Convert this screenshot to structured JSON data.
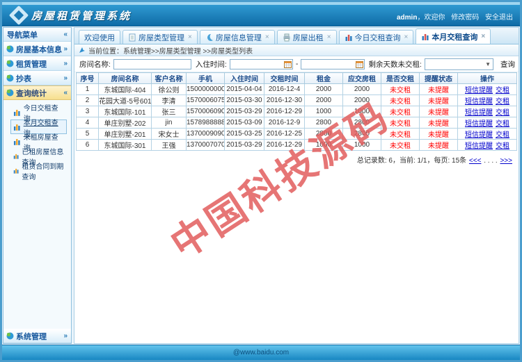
{
  "header": {
    "title": "房屋租赁管理系统",
    "user": "admin",
    "welcome_suffix": "，欢迎你",
    "change_password": "修改密码",
    "logout": "安全退出"
  },
  "sidebar": {
    "title": "导航菜单",
    "collapse": "«",
    "groups": [
      {
        "label": "房屋基本信息",
        "arrow": "»"
      },
      {
        "label": "租赁管理",
        "arrow": "»"
      },
      {
        "label": "抄表",
        "arrow": "»"
      },
      {
        "label": "查询统计",
        "arrow": "«"
      }
    ],
    "query_items": [
      {
        "label": "今日交租查询"
      },
      {
        "label": "本月交租查询"
      },
      {
        "label": "未租房屋查询"
      },
      {
        "label": "已租房屋信息查询"
      },
      {
        "label": "租赁合同到期查询"
      }
    ],
    "bottom_group": {
      "label": "系统管理",
      "arrow": "»"
    }
  },
  "tabs": [
    {
      "label": "欢迎使用",
      "close": ""
    },
    {
      "label": "房屋类型管理",
      "close": "×"
    },
    {
      "label": "房屋信息管理",
      "close": "×"
    },
    {
      "label": "房屋出租",
      "close": "×"
    },
    {
      "label": "今日交租查询",
      "close": "×"
    },
    {
      "label": "本月交租查询",
      "close": "×"
    }
  ],
  "breadcrumb": {
    "text": "当前位置：系统管理>>房屋类型管理 >>房屋类型列表"
  },
  "search": {
    "room_label": "房间名称:",
    "checkin_label": "入住时间:",
    "range_sep": "-",
    "days_label": "剩余天数未交租:",
    "select_arrow": "▼",
    "query": "查询"
  },
  "table": {
    "headers": [
      "序号",
      "房间名称",
      "客户名称",
      "手机",
      "入住时间",
      "交租时间",
      "租金",
      "应交房租",
      "是否交租",
      "提醒状态",
      "操作"
    ],
    "rows": [
      {
        "no": "1",
        "room": "东城国际-404",
        "customer": "徐公则",
        "phone": "15000000000",
        "checkin": "2015-04-04",
        "rent_date": "2016-12-4",
        "rent": "2000",
        "due": "2000",
        "paid": "未交租",
        "remind": "未提醒",
        "op_sms": "短信提醒",
        "op_pay": "交租"
      },
      {
        "no": "2",
        "room": "花园大道-5号601室",
        "customer": "李清",
        "phone": "15700060757",
        "checkin": "2015-03-30",
        "rent_date": "2016-12-30",
        "rent": "2000",
        "due": "2000",
        "paid": "未交租",
        "remind": "未提醒",
        "op_sms": "短信提醒",
        "op_pay": "交租"
      },
      {
        "no": "3",
        "room": "东城国际-101",
        "customer": "张三",
        "phone": "15700060905",
        "checkin": "2015-03-29",
        "rent_date": "2016-12-29",
        "rent": "1000",
        "due": "1000",
        "paid": "未交租",
        "remind": "未提醒",
        "op_sms": "短信提醒",
        "op_pay": "交租"
      },
      {
        "no": "4",
        "room": "单庄别墅-202",
        "customer": "jin",
        "phone": "15789888888",
        "checkin": "2015-03-09",
        "rent_date": "2016-12-9",
        "rent": "2800",
        "due": "2800",
        "paid": "未交租",
        "remind": "未提醒",
        "op_sms": "短信提醒",
        "op_pay": "交租"
      },
      {
        "no": "5",
        "room": "单庄别墅-201",
        "customer": "宋女士",
        "phone": "13700090908",
        "checkin": "2015-03-25",
        "rent_date": "2016-12-25",
        "rent": "2800",
        "due": "2800",
        "paid": "未交租",
        "remind": "未提醒",
        "op_sms": "短信提醒",
        "op_pay": "交租"
      },
      {
        "no": "6",
        "room": "东城国际-301",
        "customer": "王强",
        "phone": "13700070707",
        "checkin": "2015-03-29",
        "rent_date": "2016-12-29",
        "rent": "1000",
        "due": "1000",
        "paid": "未交租",
        "remind": "未提醒",
        "op_sms": "短信提醒",
        "op_pay": "交租"
      }
    ]
  },
  "pagination": {
    "summary": "总记录数: 6，当前: 1/1，每页: 15条",
    "prev": "<<<",
    "dots": ". . . .",
    "next": ">>>"
  },
  "watermark": "中国科技源码",
  "footer": "@www.baidu.com",
  "colors": {
    "accent": "#1b7ab5",
    "link": "#0000cc",
    "alert": "#ff0000",
    "watermark": "#e25d5d"
  }
}
